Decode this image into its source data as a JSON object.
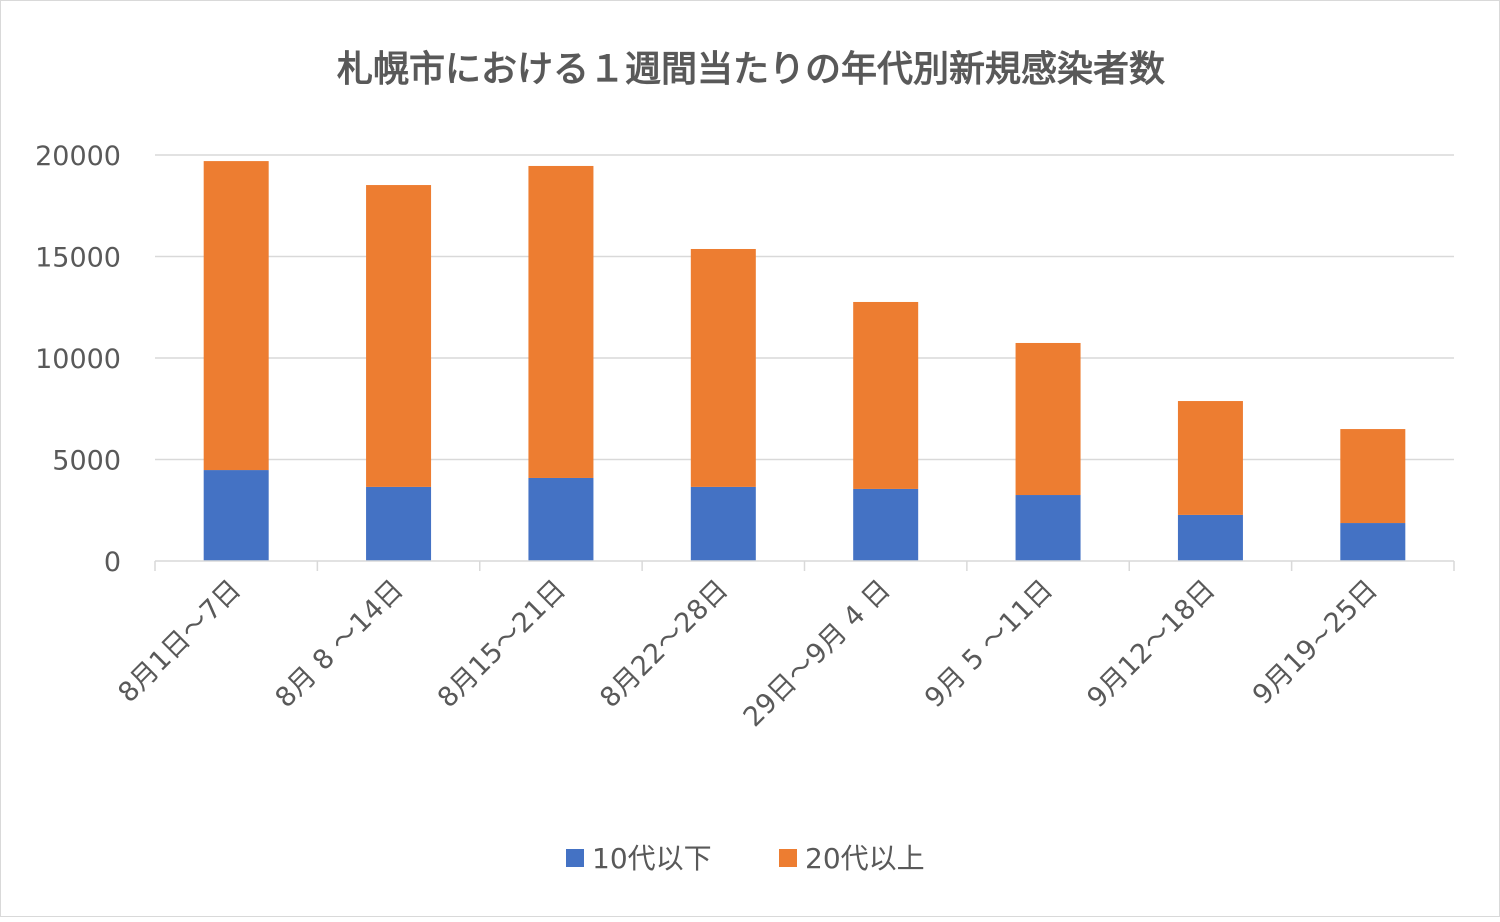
{
  "chart_data": {
    "type": "bar",
    "stacked": true,
    "title": "札幌市における１週間当たりの年代別新規感染者数",
    "xlabel": "",
    "ylabel": "",
    "ylim": [
      0,
      20000
    ],
    "yticks": [
      0,
      5000,
      10000,
      15000,
      20000
    ],
    "grid": true,
    "legend_position": "bottom",
    "categories": [
      "8月1日～7日",
      "8月 8 ～14日",
      "8月15～21日",
      "8月22～28日",
      "29日～9月 4 日",
      "9月 5 ～11日",
      "9月12～18日",
      "9月19~25日"
    ],
    "series": [
      {
        "name": "10代以下",
        "color": "#4472c4",
        "values": [
          4480,
          3650,
          4090,
          3650,
          3550,
          3250,
          2270,
          1870
        ]
      },
      {
        "name": "20代以上",
        "color": "#ed7d31",
        "values": [
          15220,
          14870,
          15370,
          11720,
          9210,
          7490,
          5610,
          4630
        ]
      }
    ]
  }
}
